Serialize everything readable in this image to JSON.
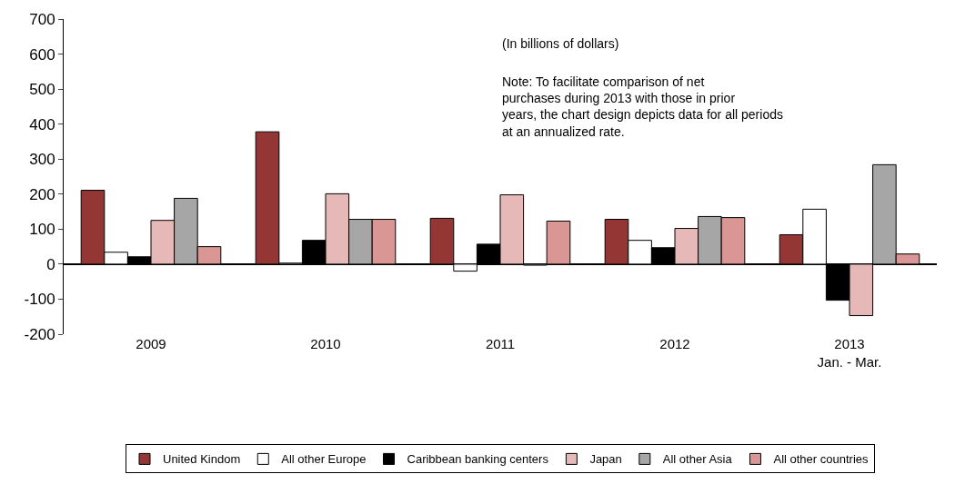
{
  "chart_data": {
    "type": "bar",
    "categories": [
      "2009",
      "2010",
      "2011",
      "2012",
      "2013\nJan. - Mar."
    ],
    "series": [
      {
        "name": "United Kindom",
        "color": "#943634",
        "values": [
          211,
          378,
          131,
          128,
          84
        ]
      },
      {
        "name": "All other Europe",
        "color": "#ffffff",
        "values": [
          34,
          3,
          -20,
          68,
          157
        ]
      },
      {
        "name": "Caribbean banking centers",
        "color": "#000000",
        "values": [
          21,
          68,
          57,
          47,
          -103
        ]
      },
      {
        "name": "Japan",
        "color": "#e6b9b8",
        "values": [
          125,
          201,
          198,
          102,
          -147
        ]
      },
      {
        "name": "All other Asia",
        "color": "#a6a6a6",
        "values": [
          188,
          128,
          -3,
          136,
          284
        ]
      },
      {
        "name": "All other countries",
        "color": "#d99694",
        "values": [
          50,
          128,
          123,
          133,
          29
        ]
      }
    ],
    "ylim": [
      -200,
      700
    ],
    "yticks": [
      -200,
      -100,
      0,
      100,
      200,
      300,
      400,
      500,
      600,
      700
    ],
    "annotations": [
      "(In billions of dollars)",
      "Note: To facilitate comparison of net\npurchases during 2013 with those in prior\nyears, the chart design depicts data for all periods\nat an annualized rate."
    ],
    "legend": "bottom"
  }
}
